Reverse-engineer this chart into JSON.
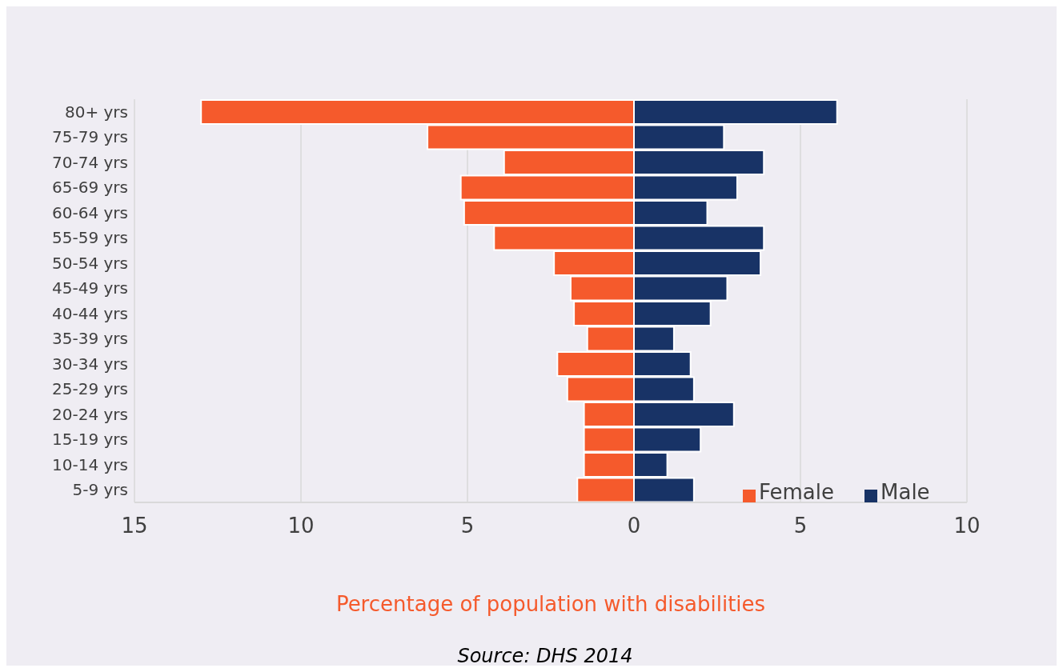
{
  "chart_data": {
    "type": "bar",
    "orientation": "horizontal",
    "stacked": true,
    "categories": [
      "80+ yrs",
      "75-79 yrs",
      "70-74 yrs",
      "65-69 yrs",
      "60-64 yrs",
      "55-59 yrs",
      "50-54 yrs",
      "45-49 yrs",
      "40-44 yrs",
      "35-39 yrs",
      "30-34 yrs",
      "25-29 yrs",
      "20-24 yrs",
      "15-19 yrs",
      "10-14 yrs",
      "5-9 yrs"
    ],
    "series": [
      {
        "name": "Female",
        "color": "#f55a2c",
        "values": [
          -13.0,
          -6.2,
          -3.9,
          -5.2,
          -5.1,
          -4.2,
          -2.4,
          -1.9,
          -1.8,
          -1.4,
          -2.3,
          -2.0,
          -1.5,
          -1.5,
          -1.5,
          -1.7
        ]
      },
      {
        "name": "Male",
        "color": "#183366",
        "values": [
          6.1,
          2.7,
          3.9,
          3.1,
          2.2,
          3.9,
          3.8,
          2.8,
          2.3,
          1.2,
          1.7,
          1.8,
          3.0,
          2.0,
          1.0,
          1.8
        ]
      }
    ],
    "xlabel": "Percentage of population with disabilities",
    "xlim": [
      -15,
      10
    ],
    "xticks": [
      {
        "value": -15,
        "label": "15"
      },
      {
        "value": -10,
        "label": "10"
      },
      {
        "value": -5,
        "label": "5"
      },
      0,
      5,
      10
    ],
    "grid": "x",
    "legend": "bottom right",
    "annotations": [
      "Source: DHS 2014"
    ]
  }
}
